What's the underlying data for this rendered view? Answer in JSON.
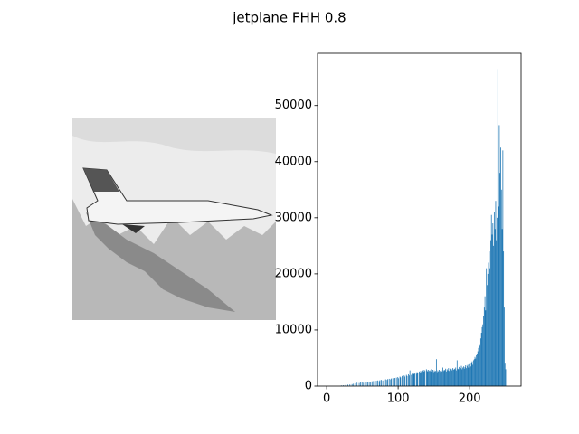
{
  "chart_data": {
    "type": "histogram",
    "title": "jetplane FHH 0.8",
    "bins": [
      0,
      1,
      2,
      3,
      4,
      5,
      6,
      7,
      8,
      9,
      10,
      11,
      12,
      13,
      14,
      15,
      16,
      17,
      18,
      19,
      20,
      21,
      22,
      23,
      24,
      25,
      26,
      27,
      28,
      29,
      30,
      31,
      32,
      33,
      34,
      35,
      36,
      37,
      38,
      39,
      40,
      41,
      42,
      43,
      44,
      45,
      46,
      47,
      48,
      49,
      50,
      51,
      52,
      53,
      54,
      55,
      56,
      57,
      58,
      59,
      60,
      61,
      62,
      63,
      64,
      65,
      66,
      67,
      68,
      69,
      70,
      71,
      72,
      73,
      74,
      75,
      76,
      77,
      78,
      79,
      80,
      81,
      82,
      83,
      84,
      85,
      86,
      87,
      88,
      89,
      90,
      91,
      92,
      93,
      94,
      95,
      96,
      97,
      98,
      99,
      100,
      101,
      102,
      103,
      104,
      105,
      106,
      107,
      108,
      109,
      110,
      111,
      112,
      113,
      114,
      115,
      116,
      117,
      118,
      119,
      120,
      121,
      122,
      123,
      124,
      125,
      126,
      127,
      128,
      129,
      130,
      131,
      132,
      133,
      134,
      135,
      136,
      137,
      138,
      139,
      140,
      141,
      142,
      143,
      144,
      145,
      146,
      147,
      148,
      149,
      150,
      151,
      152,
      153,
      154,
      155,
      156,
      157,
      158,
      159,
      160,
      161,
      162,
      163,
      164,
      165,
      166,
      167,
      168,
      169,
      170,
      171,
      172,
      173,
      174,
      175,
      176,
      177,
      178,
      179,
      180,
      181,
      182,
      183,
      184,
      185,
      186,
      187,
      188,
      189,
      190,
      191,
      192,
      193,
      194,
      195,
      196,
      197,
      198,
      199,
      200,
      201,
      202,
      203,
      204,
      205,
      206,
      207,
      208,
      209,
      210,
      211,
      212,
      213,
      214,
      215,
      216,
      217,
      218,
      219,
      220,
      221,
      222,
      223,
      224,
      225,
      226,
      227,
      228,
      229,
      230,
      231,
      232,
      233,
      234,
      235,
      236,
      237,
      238,
      239,
      240,
      241,
      242,
      243,
      244,
      245,
      246,
      247,
      248,
      249,
      250,
      251,
      252,
      253,
      254,
      255,
      256
    ],
    "values": [
      0,
      0,
      0,
      0,
      0,
      0,
      0,
      0,
      0,
      0,
      0,
      0,
      0,
      0,
      0,
      0,
      0,
      0,
      0,
      0,
      120,
      0,
      0,
      150,
      0,
      0,
      200,
      0,
      0,
      260,
      0,
      0,
      300,
      0,
      0,
      350,
      0,
      420,
      0,
      0,
      500,
      0,
      600,
      0,
      0,
      550,
      0,
      700,
      0,
      650,
      0,
      600,
      0,
      700,
      0,
      750,
      0,
      680,
      0,
      800,
      0,
      720,
      0,
      850,
      0,
      900,
      0,
      820,
      0,
      950,
      0,
      1000,
      0,
      900,
      1050,
      0,
      1100,
      0,
      1000,
      0,
      1150,
      0,
      1200,
      0,
      1100,
      1250,
      0,
      1300,
      0,
      1200,
      1350,
      0,
      1400,
      0,
      1300,
      1450,
      0,
      1500,
      0,
      1600,
      1400,
      0,
      1700,
      1550,
      0,
      1800,
      1650,
      0,
      1900,
      1700,
      0,
      2000,
      1800,
      0,
      2100,
      1900,
      2800,
      0,
      2000,
      2200,
      0,
      2300,
      2100,
      2400,
      0,
      2200,
      2500,
      2300,
      0,
      2600,
      2400,
      2700,
      2500,
      0,
      2800,
      2600,
      2900,
      2700,
      0,
      3000,
      2800,
      2600,
      2900,
      2700,
      2800,
      2600,
      3000,
      2700,
      2900,
      2500,
      2800,
      2600,
      2700,
      4800,
      2500,
      2800,
      2600,
      2900,
      2700,
      2500,
      2800,
      2600,
      3300,
      2700,
      2900,
      2800,
      3100,
      2600,
      3000,
      2800,
      3200,
      2700,
      3100,
      2900,
      3000,
      2800,
      3200,
      2900,
      3100,
      3000,
      3300,
      2800,
      4600,
      3100,
      3000,
      3400,
      2900,
      3200,
      3600,
      3000,
      3300,
      3500,
      3100,
      3400,
      3700,
      3200,
      3600,
      3800,
      3300,
      3900,
      4100,
      3500,
      4200,
      4400,
      3800,
      4600,
      4800,
      5200,
      4900,
      5500,
      5800,
      6200,
      6800,
      7500,
      7200,
      8500,
      9500,
      10500,
      11000,
      12500,
      14000,
      16000,
      13500,
      21000,
      18000,
      20000,
      22000,
      24000,
      21000,
      26000,
      30500,
      27000,
      29000,
      25000,
      31000,
      28000,
      33000,
      26000,
      30000,
      56500,
      32000,
      46500,
      38000,
      42500,
      35000,
      28000,
      42000,
      24000,
      14000,
      4000,
      3000,
      0,
      0,
      0,
      0,
      0
    ],
    "color": "#1f77b4",
    "xlim": [
      -12.8,
      272
    ],
    "ylim": [
      0,
      59300
    ],
    "xticks": [
      0,
      100,
      200
    ],
    "yticks": [
      0,
      10000,
      20000,
      30000,
      40000,
      50000
    ]
  }
}
